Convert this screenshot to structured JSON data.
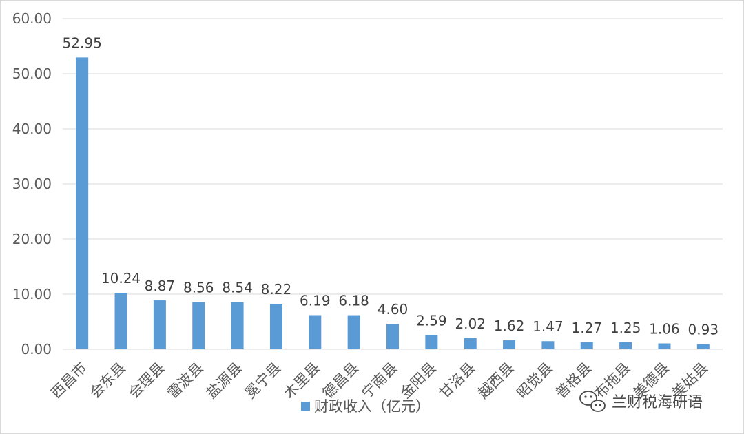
{
  "chart_data": {
    "type": "bar",
    "categories": [
      "西昌市",
      "会东县",
      "会理县",
      "雷波县",
      "盐源县",
      "冕宁县",
      "木里县",
      "德昌县",
      "宁南县",
      "金阳县",
      "甘洛县",
      "越西县",
      "昭觉县",
      "普格县",
      "布拖县",
      "美德县",
      "美姑县"
    ],
    "series": [
      {
        "name": "财政收入（亿元）",
        "values": [
          52.95,
          10.24,
          8.87,
          8.56,
          8.54,
          8.22,
          6.19,
          6.18,
          4.6,
          2.59,
          2.02,
          1.62,
          1.47,
          1.27,
          1.25,
          1.06,
          0.93
        ],
        "labels": [
          "52.95",
          "10.24",
          "8.87",
          "8.56",
          "8.54",
          "8.22",
          "6.19",
          "6.18",
          "4.60",
          "2.59",
          "2.02",
          "1.62",
          "1.47",
          "1.27",
          "1.25",
          "1.06",
          "0.93"
        ]
      }
    ],
    "yticks": [
      "0.00",
      "10.00",
      "20.00",
      "30.00",
      "40.00",
      "50.00",
      "60.00"
    ],
    "ylim": [
      0,
      60
    ],
    "grid": true,
    "legend_position": "bottom",
    "bar_color": "#5b9bd5"
  },
  "watermark": {
    "text": "兰财税海研语",
    "icon": "wechat-icon"
  }
}
